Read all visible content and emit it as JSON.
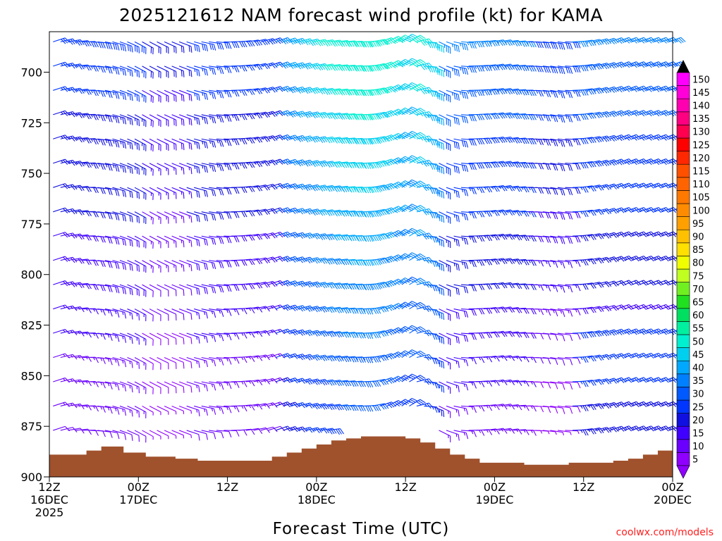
{
  "chart_data": {
    "type": "wind_barb_profile",
    "title": "2025121612 NAM forecast wind profile (kt) for KAMA",
    "xlabel": "Forecast Time (UTC)",
    "ylabel": "",
    "units": "kt",
    "y_axis": {
      "ticks": [
        "700",
        "725",
        "750",
        "775",
        "800",
        "825",
        "850",
        "875",
        "900"
      ],
      "range_hpa": [
        680,
        900
      ],
      "inverted": true
    },
    "x_axis": {
      "ticks": [
        {
          "l1": "12Z",
          "l2": "16DEC",
          "l3": "2025"
        },
        {
          "l1": "00Z",
          "l2": "17DEC",
          "l3": ""
        },
        {
          "l1": "12Z",
          "l2": "",
          "l3": ""
        },
        {
          "l1": "00Z",
          "l2": "18DEC",
          "l3": ""
        },
        {
          "l1": "12Z",
          "l2": "",
          "l3": ""
        },
        {
          "l1": "00Z",
          "l2": "19DEC",
          "l3": ""
        },
        {
          "l1": "12Z",
          "l2": "",
          "l3": ""
        },
        {
          "l1": "00Z",
          "l2": "20DEC",
          "l3": ""
        }
      ],
      "range_hours": [
        0,
        84
      ]
    },
    "colorbar": {
      "levels": [
        "5",
        "10",
        "15",
        "20",
        "25",
        "30",
        "35",
        "40",
        "45",
        "50",
        "55",
        "60",
        "65",
        "70",
        "75",
        "80",
        "85",
        "90",
        "95",
        "100",
        "105",
        "110",
        "115",
        "120",
        "125",
        "130",
        "135",
        "140",
        "145",
        "150"
      ],
      "colors": [
        "#8f00ff",
        "#6a00ff",
        "#4000ff",
        "#1010e0",
        "#0036ff",
        "#005aff",
        "#0080ff",
        "#00a8ff",
        "#00d0f0",
        "#00f0d0",
        "#00f0a0",
        "#00e060",
        "#20e020",
        "#70f020",
        "#c0ff20",
        "#f0ff00",
        "#ffe000",
        "#ffc000",
        "#ffa000",
        "#ff8c00",
        "#ff7800",
        "#ff6400",
        "#ff5000",
        "#ff2800",
        "#ff0000",
        "#ff0050",
        "#ff0080",
        "#ff00b0",
        "#ff00d8",
        "#ff00ff"
      ]
    },
    "terrain_color": "#a0522d",
    "grid": false
  },
  "credit": "coolwx.com/models"
}
